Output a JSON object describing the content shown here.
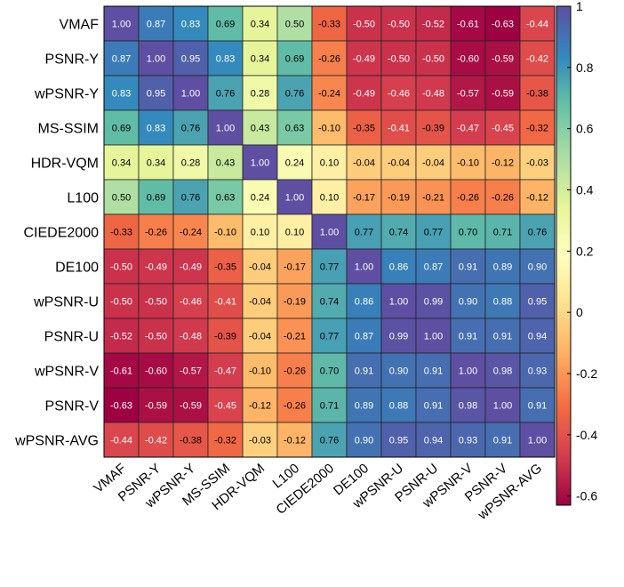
{
  "chart_data": {
    "type": "heatmap",
    "title": "",
    "xlabel": "",
    "ylabel": "",
    "labels": [
      "VMAF",
      "PSNR-Y",
      "wPSNR-Y",
      "MS-SSIM",
      "HDR-VQM",
      "L100",
      "CIEDE2000",
      "DE100",
      "wPSNR-U",
      "PSNR-U",
      "wPSNR-V",
      "PSNR-V",
      "wPSNR-AVG"
    ],
    "matrix": [
      [
        1.0,
        0.87,
        0.83,
        0.69,
        0.34,
        0.5,
        -0.33,
        -0.5,
        -0.5,
        -0.52,
        -0.61,
        -0.63,
        -0.44
      ],
      [
        0.87,
        1.0,
        0.95,
        0.83,
        0.34,
        0.69,
        -0.26,
        -0.49,
        -0.5,
        -0.5,
        -0.6,
        -0.59,
        -0.42
      ],
      [
        0.83,
        0.95,
        1.0,
        0.76,
        0.28,
        0.76,
        -0.24,
        -0.49,
        -0.46,
        -0.48,
        -0.57,
        -0.59,
        -0.38
      ],
      [
        0.69,
        0.83,
        0.76,
        1.0,
        0.43,
        0.63,
        -0.1,
        -0.35,
        -0.41,
        -0.39,
        -0.47,
        -0.45,
        -0.32
      ],
      [
        0.34,
        0.34,
        0.28,
        0.43,
        1.0,
        0.24,
        0.1,
        -0.04,
        -0.04,
        -0.04,
        -0.1,
        -0.12,
        -0.03
      ],
      [
        0.5,
        0.69,
        0.76,
        0.63,
        0.24,
        1.0,
        0.1,
        -0.17,
        -0.19,
        -0.21,
        -0.26,
        -0.26,
        -0.12
      ],
      [
        -0.33,
        -0.26,
        -0.24,
        -0.1,
        0.1,
        0.1,
        1.0,
        0.77,
        0.74,
        0.77,
        0.7,
        0.71,
        0.76
      ],
      [
        -0.5,
        -0.49,
        -0.49,
        -0.35,
        -0.04,
        -0.17,
        0.77,
        1.0,
        0.86,
        0.87,
        0.91,
        0.89,
        0.9
      ],
      [
        -0.5,
        -0.5,
        -0.46,
        -0.41,
        -0.04,
        -0.19,
        0.74,
        0.86,
        1.0,
        0.99,
        0.9,
        0.88,
        0.95
      ],
      [
        -0.52,
        -0.5,
        -0.48,
        -0.39,
        -0.04,
        -0.21,
        0.77,
        0.87,
        0.99,
        1.0,
        0.91,
        0.91,
        0.94
      ],
      [
        -0.61,
        -0.6,
        -0.57,
        -0.47,
        -0.1,
        -0.26,
        0.7,
        0.91,
        0.9,
        0.91,
        1.0,
        0.98,
        0.93
      ],
      [
        -0.63,
        -0.59,
        -0.59,
        -0.45,
        -0.12,
        -0.26,
        0.71,
        0.89,
        0.88,
        0.91,
        0.98,
        1.0,
        0.91
      ],
      [
        -0.44,
        -0.42,
        -0.38,
        -0.32,
        -0.03,
        -0.12,
        0.76,
        0.9,
        0.95,
        0.94,
        0.93,
        0.91,
        1.0
      ]
    ],
    "colormap": "Spectral",
    "vmin": -0.63,
    "vmax": 1.0,
    "colorbar": {
      "ticks": [
        1,
        0.8,
        0.6,
        0.4,
        0.2,
        0,
        -0.2,
        -0.4,
        -0.6
      ],
      "tick_labels": [
        "1",
        "0.8",
        "0.6",
        "0.4",
        "0.2",
        "0",
        "-0.2",
        "-0.4",
        "-0.6"
      ],
      "position": "right"
    },
    "grid": true
  }
}
